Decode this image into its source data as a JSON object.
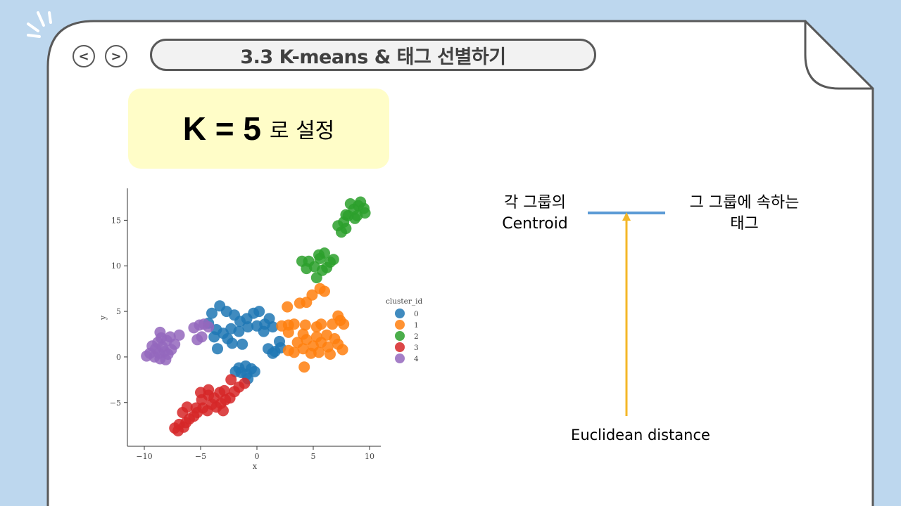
{
  "nav": {
    "back_label": "<",
    "forward_label": ">"
  },
  "title": "3.3 K-means & 태그 선별하기",
  "callout": {
    "main": "K = 5",
    "suffix": "로 설정"
  },
  "annotations": {
    "centroid": "각 그룹의\nCentroid",
    "group_tag": "그 그룹에 속하는\n태그",
    "distance": "Euclidean distance"
  },
  "colors": {
    "background": "#bdd7ee",
    "callout_bg": "#fffdc8",
    "connector": "#5b9bd5",
    "arrow": "#f4b728"
  },
  "chart_data": {
    "type": "scatter",
    "xlabel": "x",
    "ylabel": "y",
    "xlim": [
      -11.5,
      11
    ],
    "ylim": [
      -9.8,
      18.5
    ],
    "xticks": [
      -10,
      -5,
      0,
      5,
      10
    ],
    "yticks": [
      -5,
      0,
      5,
      10,
      15
    ],
    "legend": {
      "title": "cluster_id",
      "placement": "right"
    },
    "series": [
      {
        "name": "0",
        "color": "#1f77b4",
        "points": [
          [
            -4.0,
            4.8
          ],
          [
            -3.3,
            5.6
          ],
          [
            -2.7,
            5.0
          ],
          [
            -2.0,
            4.6
          ],
          [
            -1.5,
            3.9
          ],
          [
            -0.9,
            4.2
          ],
          [
            -0.3,
            4.8
          ],
          [
            0.2,
            5.0
          ],
          [
            0.7,
            3.6
          ],
          [
            1.1,
            4.2
          ],
          [
            -4.3,
            3.7
          ],
          [
            -3.6,
            3.0
          ],
          [
            -3.0,
            2.6
          ],
          [
            -2.3,
            3.1
          ],
          [
            -1.6,
            2.8
          ],
          [
            -0.8,
            3.3
          ],
          [
            0.0,
            3.4
          ],
          [
            0.6,
            2.8
          ],
          [
            1.4,
            3.3
          ],
          [
            -3.8,
            2.2
          ],
          [
            -2.6,
            2.0
          ],
          [
            -1.3,
            1.4
          ],
          [
            1.0,
            0.9
          ],
          [
            1.6,
            0.6
          ],
          [
            2.1,
            1.0
          ],
          [
            2.0,
            1.7
          ],
          [
            -2.2,
            1.5
          ],
          [
            -3.5,
            0.9
          ],
          [
            1.4,
            0.4
          ],
          [
            -1.6,
            -1.2
          ],
          [
            -1.0,
            -1.0
          ],
          [
            -0.5,
            -1.3
          ],
          [
            -0.9,
            -1.9
          ],
          [
            -1.4,
            -1.7
          ],
          [
            -0.8,
            -2.4
          ],
          [
            -0.2,
            -1.6
          ],
          [
            -1.9,
            -1.6
          ]
        ]
      },
      {
        "name": "1",
        "color": "#ff7f0e",
        "points": [
          [
            2.7,
            5.5
          ],
          [
            3.8,
            5.9
          ],
          [
            4.4,
            6.0
          ],
          [
            4.9,
            6.8
          ],
          [
            5.6,
            7.5
          ],
          [
            6.0,
            7.2
          ],
          [
            2.2,
            3.4
          ],
          [
            2.8,
            3.5
          ],
          [
            3.3,
            3.6
          ],
          [
            4.3,
            3.5
          ],
          [
            5.3,
            3.3
          ],
          [
            5.7,
            3.6
          ],
          [
            6.7,
            3.6
          ],
          [
            7.2,
            4.5
          ],
          [
            7.4,
            4.0
          ],
          [
            7.7,
            3.6
          ],
          [
            2.8,
            2.7
          ],
          [
            4.1,
            2.5
          ],
          [
            5.3,
            2.2
          ],
          [
            6.2,
            2.4
          ],
          [
            6.9,
            2.0
          ],
          [
            3.6,
            1.6
          ],
          [
            4.4,
            1.9
          ],
          [
            5.0,
            1.2
          ],
          [
            5.7,
            1.6
          ],
          [
            6.3,
            1.1
          ],
          [
            7.2,
            1.4
          ],
          [
            7.6,
            0.8
          ],
          [
            2.8,
            0.7
          ],
          [
            3.3,
            0.5
          ],
          [
            4.1,
            0.9
          ],
          [
            4.8,
            0.4
          ],
          [
            5.5,
            0.5
          ],
          [
            6.5,
            0.3
          ],
          [
            4.2,
            -1.1
          ]
        ]
      },
      {
        "name": "2",
        "color": "#2ca02c",
        "points": [
          [
            7.2,
            14.4
          ],
          [
            7.7,
            14.8
          ],
          [
            8.1,
            15.5
          ],
          [
            8.6,
            16.2
          ],
          [
            9.0,
            16.6
          ],
          [
            9.5,
            16.3
          ],
          [
            8.3,
            16.8
          ],
          [
            7.9,
            15.6
          ],
          [
            8.9,
            15.5
          ],
          [
            7.5,
            13.7
          ],
          [
            9.6,
            15.8
          ],
          [
            8.7,
            15.2
          ],
          [
            7.9,
            14.1
          ],
          [
            9.2,
            17.0
          ],
          [
            4.0,
            10.5
          ],
          [
            4.6,
            10.5
          ],
          [
            5.1,
            9.9
          ],
          [
            5.6,
            10.8
          ],
          [
            6.0,
            11.4
          ],
          [
            6.5,
            10.4
          ],
          [
            6.8,
            10.7
          ],
          [
            4.4,
            9.7
          ],
          [
            5.3,
            8.7
          ],
          [
            5.8,
            9.5
          ],
          [
            6.2,
            9.8
          ],
          [
            5.5,
            11.2
          ]
        ]
      },
      {
        "name": "3",
        "color": "#d62728",
        "points": [
          [
            -7.3,
            -7.8
          ],
          [
            -6.9,
            -7.4
          ],
          [
            -6.5,
            -7.7
          ],
          [
            -6.3,
            -7.2
          ],
          [
            -6.0,
            -6.8
          ],
          [
            -5.6,
            -6.5
          ],
          [
            -5.3,
            -6.1
          ],
          [
            -4.8,
            -5.6
          ],
          [
            -4.4,
            -5.9
          ],
          [
            -4.0,
            -5.2
          ],
          [
            -3.6,
            -5.5
          ],
          [
            -3.2,
            -5.1
          ],
          [
            -2.8,
            -4.7
          ],
          [
            -2.4,
            -4.5
          ],
          [
            -2.0,
            -3.8
          ],
          [
            -1.6,
            -3.3
          ],
          [
            -1.1,
            -2.9
          ],
          [
            -6.6,
            -6.1
          ],
          [
            -6.2,
            -5.5
          ],
          [
            -5.4,
            -5.6
          ],
          [
            -4.9,
            -4.7
          ],
          [
            -4.3,
            -4.2
          ],
          [
            -3.8,
            -4.5
          ],
          [
            -3.3,
            -3.9
          ],
          [
            -2.9,
            -3.7
          ],
          [
            -5.0,
            -3.9
          ],
          [
            -4.3,
            -3.6
          ],
          [
            -3.0,
            -5.9
          ],
          [
            -2.3,
            -2.5
          ],
          [
            -7.0,
            -8.1
          ]
        ]
      },
      {
        "name": "4",
        "color": "#9467bd",
        "points": [
          [
            -9.5,
            0.4
          ],
          [
            -9.3,
            1.2
          ],
          [
            -9.0,
            0.9
          ],
          [
            -8.7,
            0.4
          ],
          [
            -8.8,
            1.6
          ],
          [
            -8.5,
            2.1
          ],
          [
            -8.0,
            1.8
          ],
          [
            -7.7,
            2.2
          ],
          [
            -7.3,
            1.4
          ],
          [
            -6.9,
            2.4
          ],
          [
            -9.1,
            0.0
          ],
          [
            -8.6,
            -0.2
          ],
          [
            -8.2,
            0.6
          ],
          [
            -7.9,
            0.3
          ],
          [
            -8.4,
            1.1
          ],
          [
            -8.1,
            -0.3
          ],
          [
            -7.6,
            0.8
          ],
          [
            -5.6,
            3.2
          ],
          [
            -5.1,
            3.5
          ],
          [
            -4.7,
            3.6
          ],
          [
            -4.3,
            3.3
          ],
          [
            -4.9,
            2.2
          ],
          [
            -5.3,
            1.9
          ],
          [
            -8.6,
            2.7
          ],
          [
            -9.8,
            0.1
          ]
        ]
      }
    ]
  }
}
